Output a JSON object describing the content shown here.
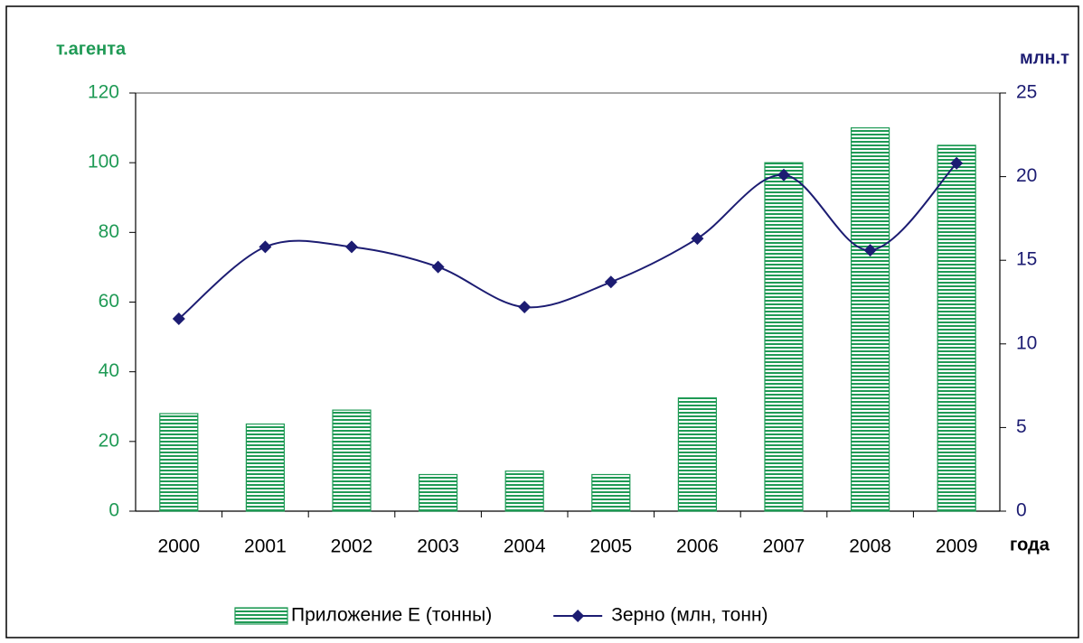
{
  "chart_data": {
    "type": "bar",
    "ylabel": "т.агента",
    "y2label": "млн.т",
    "xlabel": "года",
    "categories": [
      "2000",
      "2001",
      "2002",
      "2003",
      "2004",
      "2005",
      "2006",
      "2007",
      "2008",
      "2009"
    ],
    "series": [
      {
        "name": "Приложение Е (тонны)",
        "type": "bar",
        "color": "#1f9a55",
        "values": [
          28,
          25,
          29,
          10.5,
          11.5,
          10.5,
          32.5,
          100,
          110,
          105
        ]
      },
      {
        "name": "Зерно (млн, тонн)",
        "type": "line",
        "axis": "y2",
        "color": "#1c1c72",
        "values": [
          11.5,
          15.8,
          15.8,
          14.6,
          12.2,
          13.7,
          16.3,
          20.1,
          15.6,
          20.8
        ]
      }
    ],
    "ylim": [
      0,
      120
    ],
    "yticks": [
      0,
      20,
      40,
      60,
      80,
      100,
      120
    ],
    "y2lim": [
      0,
      25
    ],
    "y2ticks": [
      0,
      5,
      10,
      15,
      20,
      25
    ],
    "legend": "bottom",
    "grid": false
  }
}
